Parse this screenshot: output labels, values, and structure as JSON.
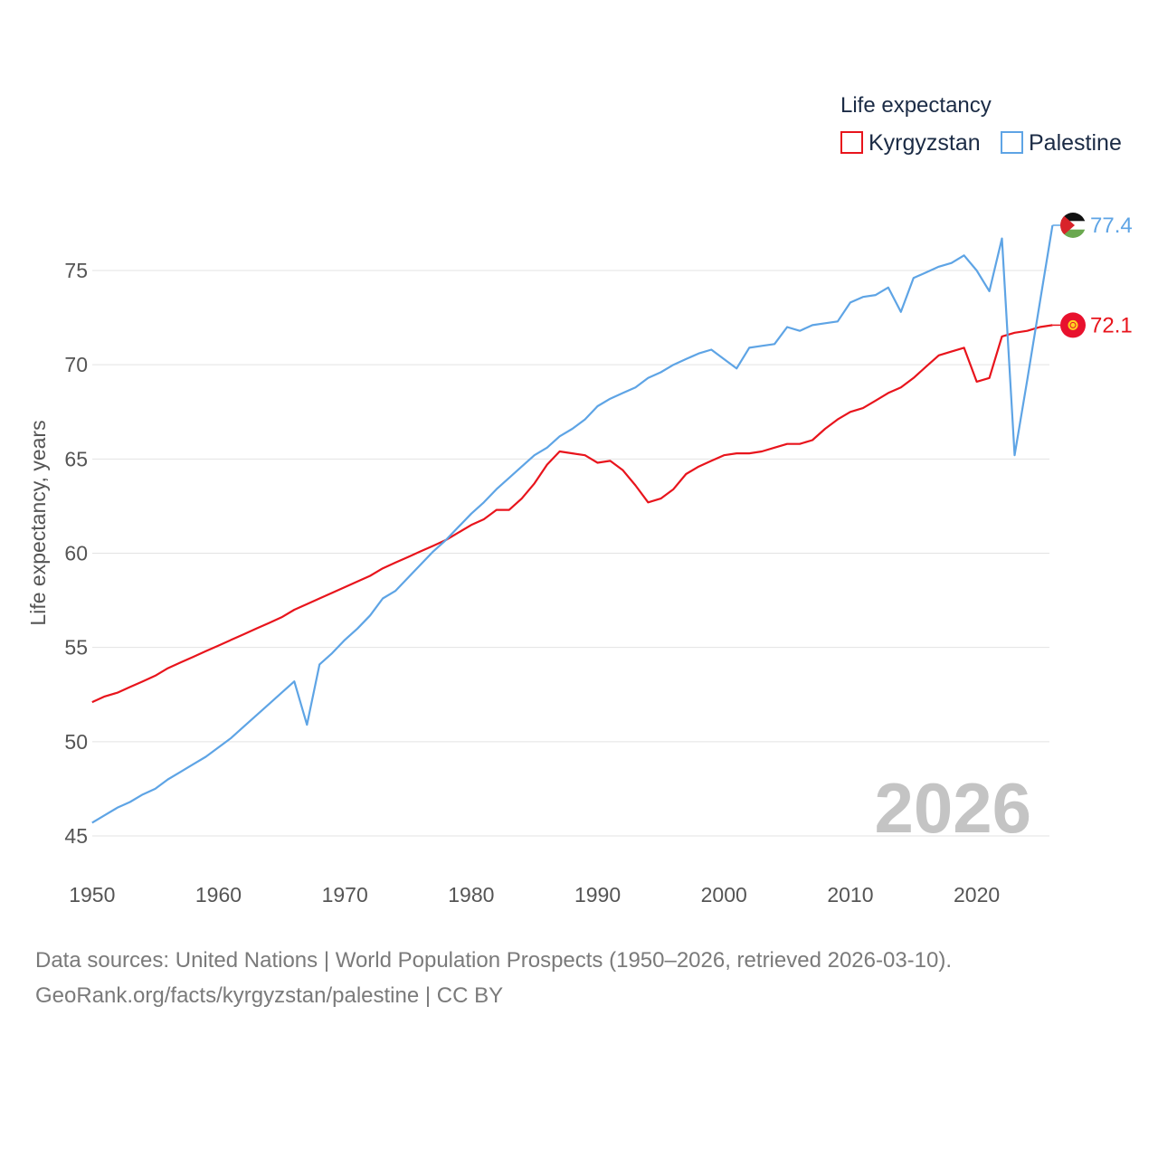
{
  "chart_data": {
    "type": "line",
    "title": "",
    "legend_title": "Life expectancy",
    "xlabel": "",
    "ylabel": "Life expectancy, years",
    "xlim": [
      1950,
      2026
    ],
    "ylim": [
      45,
      78
    ],
    "x_ticks": [
      "1950",
      "1960",
      "1970",
      "1980",
      "1990",
      "2000",
      "2010",
      "2020"
    ],
    "y_ticks": [
      "45",
      "50",
      "55",
      "60",
      "65",
      "70",
      "75"
    ],
    "grid": true,
    "legend_position": "top-right",
    "year_label": "2026",
    "series": [
      {
        "name": "Kyrgyzstan",
        "color": "#e8141c",
        "end_label": "72.1",
        "flag_icon": "kyrgyzstan-flag-icon",
        "x": [
          1950,
          1951,
          1952,
          1953,
          1954,
          1955,
          1956,
          1957,
          1958,
          1959,
          1960,
          1961,
          1962,
          1963,
          1964,
          1965,
          1966,
          1967,
          1968,
          1969,
          1970,
          1971,
          1972,
          1973,
          1974,
          1975,
          1976,
          1977,
          1978,
          1979,
          1980,
          1981,
          1982,
          1983,
          1984,
          1985,
          1986,
          1987,
          1988,
          1989,
          1990,
          1991,
          1992,
          1993,
          1994,
          1995,
          1996,
          1997,
          1998,
          1999,
          2000,
          2001,
          2002,
          2003,
          2004,
          2005,
          2006,
          2007,
          2008,
          2009,
          2010,
          2011,
          2012,
          2013,
          2014,
          2015,
          2016,
          2017,
          2018,
          2019,
          2020,
          2021,
          2022,
          2023,
          2024,
          2025,
          2026
        ],
        "values": [
          52.1,
          52.4,
          52.6,
          52.9,
          53.2,
          53.5,
          53.9,
          54.2,
          54.5,
          54.8,
          55.1,
          55.4,
          55.7,
          56.0,
          56.3,
          56.6,
          57.0,
          57.3,
          57.6,
          57.9,
          58.2,
          58.5,
          58.8,
          59.2,
          59.5,
          59.8,
          60.1,
          60.4,
          60.7,
          61.1,
          61.5,
          61.8,
          62.3,
          62.3,
          62.9,
          63.7,
          64.7,
          65.4,
          65.3,
          65.2,
          64.8,
          64.9,
          64.4,
          63.6,
          62.7,
          62.9,
          63.4,
          64.2,
          64.6,
          64.9,
          65.2,
          65.3,
          65.3,
          65.4,
          65.6,
          65.8,
          65.8,
          66.0,
          66.6,
          67.1,
          67.5,
          67.7,
          68.1,
          68.5,
          68.8,
          69.3,
          69.9,
          70.5,
          70.7,
          70.9,
          69.1,
          69.3,
          71.5,
          71.7,
          71.8,
          72.0,
          72.1
        ]
      },
      {
        "name": "Palestine",
        "color": "#5ea4e5",
        "end_label": "77.4",
        "flag_icon": "palestine-flag-icon",
        "x": [
          1950,
          1951,
          1952,
          1953,
          1954,
          1955,
          1956,
          1957,
          1958,
          1959,
          1960,
          1961,
          1962,
          1963,
          1964,
          1965,
          1966,
          1967,
          1968,
          1969,
          1970,
          1971,
          1972,
          1973,
          1974,
          1975,
          1976,
          1977,
          1978,
          1979,
          1980,
          1981,
          1982,
          1983,
          1984,
          1985,
          1986,
          1987,
          1988,
          1989,
          1990,
          1991,
          1992,
          1993,
          1994,
          1995,
          1996,
          1997,
          1998,
          1999,
          2000,
          2001,
          2002,
          2003,
          2004,
          2005,
          2006,
          2007,
          2008,
          2009,
          2010,
          2011,
          2012,
          2013,
          2014,
          2015,
          2016,
          2017,
          2018,
          2019,
          2020,
          2021,
          2022,
          2023,
          2024,
          2025,
          2026
        ],
        "values": [
          45.7,
          46.1,
          46.5,
          46.8,
          47.2,
          47.5,
          48.0,
          48.4,
          48.8,
          49.2,
          49.7,
          50.2,
          50.8,
          51.4,
          52.0,
          52.6,
          53.2,
          50.9,
          54.1,
          54.7,
          55.4,
          56.0,
          56.7,
          57.6,
          58.0,
          58.7,
          59.4,
          60.1,
          60.7,
          61.4,
          62.1,
          62.7,
          63.4,
          64.0,
          64.6,
          65.2,
          65.6,
          66.2,
          66.6,
          67.1,
          67.8,
          68.2,
          68.5,
          68.8,
          69.3,
          69.6,
          70.0,
          70.3,
          70.6,
          70.8,
          70.3,
          69.8,
          70.9,
          71.0,
          71.1,
          72.0,
          71.8,
          72.1,
          72.2,
          72.3,
          73.3,
          73.6,
          73.7,
          74.1,
          72.8,
          74.6,
          74.9,
          75.2,
          75.4,
          75.8,
          75.0,
          73.9,
          76.7,
          65.2,
          69.2,
          73.3,
          77.4
        ]
      }
    ]
  },
  "source": {
    "line1": "Data sources: United Nations | World Population Prospects (1950–2026, retrieved 2026-03-10).",
    "line2": "GeoRank.org/facts/kyrgyzstan/palestine | CC BY"
  }
}
